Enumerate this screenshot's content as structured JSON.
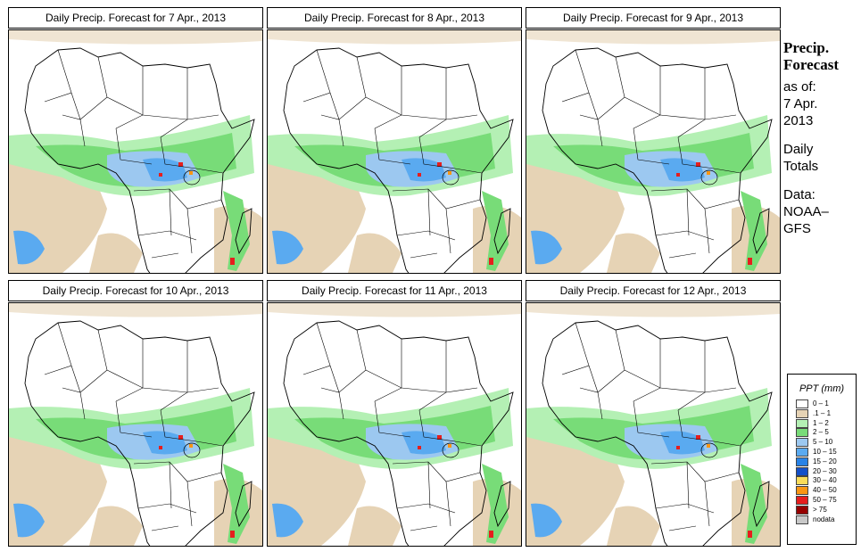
{
  "panels": [
    {
      "title": "Daily Precip. Forecast for  7 Apr., 2013"
    },
    {
      "title": "Daily Precip. Forecast for  8 Apr., 2013"
    },
    {
      "title": "Daily Precip. Forecast for  9 Apr., 2013"
    },
    {
      "title": "Daily Precip. Forecast for  10 Apr., 2013"
    },
    {
      "title": "Daily Precip. Forecast for  11 Apr., 2013"
    },
    {
      "title": "Daily Precip. Forecast for  12 Apr., 2013"
    }
  ],
  "sidebar": {
    "heading_line1": "Precip.",
    "heading_line2": "Forecast",
    "asof_label": "as of:",
    "asof_date1": "7 Apr.",
    "asof_date2": "2013",
    "totals1": "Daily",
    "totals2": "Totals",
    "data1": "Data:",
    "data2": "NOAA–",
    "data3": "GFS"
  },
  "legend": {
    "title": "PPT (mm)",
    "items": [
      {
        "label": "0 – 1",
        "color": "#ffffff"
      },
      {
        "label": ".1 – 1",
        "color": "#e6d3b5"
      },
      {
        "label": "1 – 2",
        "color": "#b4f0b4"
      },
      {
        "label": "2 – 5",
        "color": "#78dc78"
      },
      {
        "label": "5 – 10",
        "color": "#9cc8f0"
      },
      {
        "label": "10 – 15",
        "color": "#5aaaf0"
      },
      {
        "label": "15 – 20",
        "color": "#2882e6"
      },
      {
        "label": "20 – 30",
        "color": "#1450c8"
      },
      {
        "label": "30 – 40",
        "color": "#fadc5a"
      },
      {
        "label": "40 – 50",
        "color": "#fa9614"
      },
      {
        "label": "50 – 75",
        "color": "#e61e1e"
      },
      {
        "label": "> 75",
        "color": "#960000"
      },
      {
        "label": "nodata",
        "color": "#c8c8c8"
      }
    ]
  },
  "colors": {
    "sand": "#e6d3b5",
    "light_green": "#b4f0b4",
    "green": "#78dc78",
    "light_blue": "#9cc8f0",
    "blue": "#5aaaf0",
    "dark_blue": "#2882e6",
    "red": "#e61e1e",
    "orange": "#fa9614"
  }
}
